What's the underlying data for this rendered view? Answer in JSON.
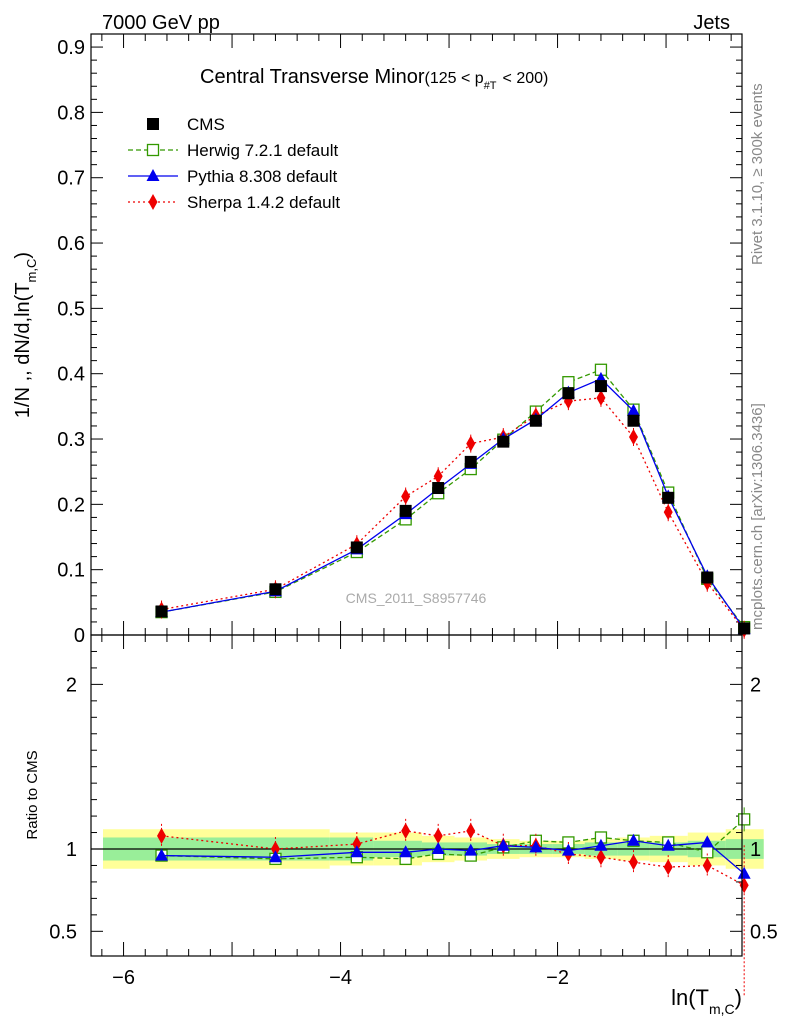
{
  "header": {
    "left": "7000 GeV pp",
    "right": "Jets"
  },
  "side_text": {
    "rivet": "Rivet 3.1.10, ≥ 300k events",
    "mcplots": "mcplots.cern.ch [arXiv:1306.3436]"
  },
  "watermark": "CMS_2011_S8957746",
  "colors": {
    "cms": "#000000",
    "herwig": "#339900",
    "pythia": "#0000ee",
    "sherpa": "#ee0000",
    "band_inner": "#99ee99",
    "band_outer": "#ffff99"
  },
  "chart_data": [
    {
      "type": "line",
      "title": "Central Transverse Minor",
      "subtitle": "(125 < p",
      "subtitle_sub": "#T",
      "subtitle_tail": "< 200)",
      "ylabel": "1/N ,, dN/d,ln(T",
      "ylabel_sub": "m,C",
      "ylabel_tail": ")",
      "ylim": [
        0,
        0.92
      ],
      "yticks": [
        0,
        0.1,
        0.2,
        0.3,
        0.4,
        0.5,
        0.6,
        0.7,
        0.8,
        0.9
      ],
      "ytick_labels": [
        "0",
        "0.1",
        "0.2",
        "0.3",
        "0.4",
        "0.5",
        "0.6",
        "0.7",
        "0.8",
        "0.9"
      ],
      "xlim": [
        -6.3,
        -0.3
      ],
      "x": [
        -5.65,
        -4.6,
        -3.85,
        -3.4,
        -3.1,
        -2.8,
        -2.5,
        -2.2,
        -1.9,
        -1.6,
        -1.3,
        -0.98,
        -0.62,
        -0.28
      ],
      "legend_position": "top-left",
      "series": [
        {
          "name": "CMS",
          "key": "cms",
          "values": [
            0.036,
            0.07,
            0.134,
            0.19,
            0.225,
            0.265,
            0.296,
            0.328,
            0.37,
            0.381,
            0.328,
            0.21,
            0.088,
            0.01
          ]
        },
        {
          "name": "Herwig 7.2.1 default",
          "key": "herwig",
          "values": [
            0.035,
            0.066,
            0.127,
            0.177,
            0.217,
            0.254,
            0.299,
            0.342,
            0.387,
            0.406,
            0.345,
            0.218,
            0.086,
            0.012
          ]
        },
        {
          "name": "Pythia 8.308 default",
          "key": "pythia",
          "values": [
            0.035,
            0.067,
            0.131,
            0.185,
            0.224,
            0.262,
            0.3,
            0.33,
            0.371,
            0.392,
            0.343,
            0.212,
            0.09,
            0.009
          ]
        },
        {
          "name": "Sherpa 1.4.2 default",
          "key": "sherpa",
          "values": [
            0.039,
            0.07,
            0.139,
            0.212,
            0.243,
            0.293,
            0.303,
            0.336,
            0.358,
            0.363,
            0.303,
            0.188,
            0.08,
            0.008
          ]
        }
      ]
    },
    {
      "type": "line",
      "ylabel": "Ratio to CMS",
      "xlabel": "ln(T",
      "xlabel_sub": "m,C",
      "xlabel_tail": ")",
      "ylim": [
        0.35,
        2.3
      ],
      "yticks": [
        0.5,
        1,
        2
      ],
      "ytick_labels": [
        "0.5",
        "1",
        "2"
      ],
      "xlim": [
        -6.3,
        -0.3
      ],
      "xticks": [
        -6,
        -4,
        -2
      ],
      "xtick_labels": [
        "−6",
        "−4",
        "−2"
      ],
      "x": [
        -5.65,
        -4.6,
        -3.85,
        -3.4,
        -3.1,
        -2.8,
        -2.5,
        -2.2,
        -1.9,
        -1.6,
        -1.3,
        -0.98,
        -0.62,
        -0.28
      ],
      "band_edges": [
        -6.3,
        -4.1,
        -3.7,
        -3.25,
        -2.95,
        -2.65,
        -2.35,
        -2.05,
        -1.75,
        -1.45,
        -1.15,
        -0.8,
        -0.45,
        -0.1
      ],
      "band_inner": [
        0.07,
        0.07,
        0.05,
        0.04,
        0.04,
        0.03,
        0.03,
        0.03,
        0.04,
        0.04,
        0.04,
        0.05,
        0.06
      ],
      "band_outer": [
        0.12,
        0.1,
        0.1,
        0.08,
        0.07,
        0.06,
        0.05,
        0.05,
        0.06,
        0.07,
        0.08,
        0.1,
        0.12
      ],
      "series": [
        {
          "name": "Herwig 7.2.1 default",
          "key": "herwig",
          "values": [
            0.96,
            0.94,
            0.95,
            0.94,
            0.97,
            0.96,
            1.01,
            1.05,
            1.04,
            1.07,
            1.05,
            1.04,
            0.98,
            1.18
          ]
        },
        {
          "name": "Pythia 8.308 default",
          "key": "pythia",
          "values": [
            0.96,
            0.95,
            0.98,
            0.98,
            1.0,
            0.99,
            1.02,
            1.01,
            0.99,
            1.02,
            1.05,
            1.02,
            1.04,
            0.85
          ]
        },
        {
          "name": "Sherpa 1.4.2 default",
          "key": "sherpa",
          "values": [
            1.08,
            1.0,
            1.03,
            1.11,
            1.08,
            1.11,
            1.02,
            1.02,
            0.97,
            0.95,
            0.92,
            0.89,
            0.9,
            0.78
          ]
        }
      ]
    }
  ]
}
